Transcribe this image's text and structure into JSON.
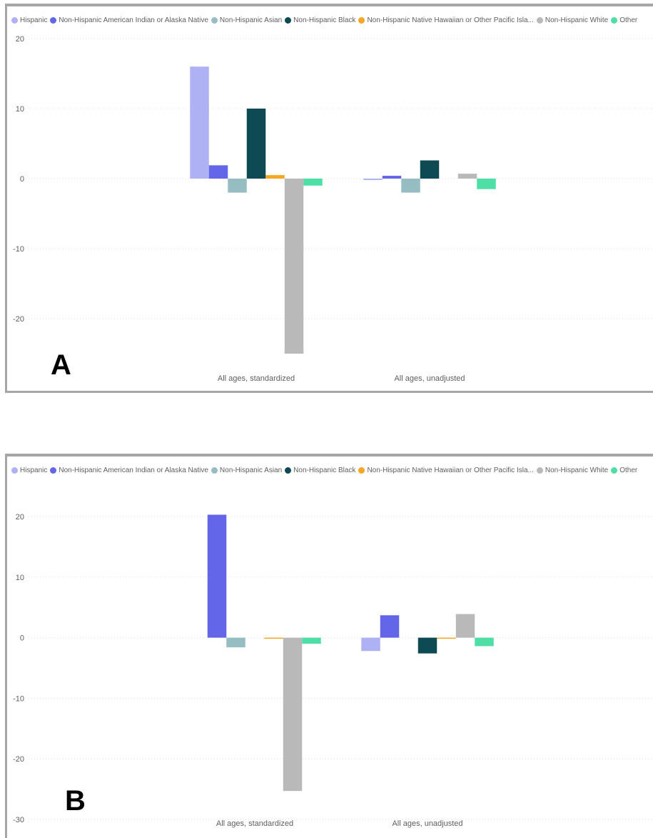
{
  "legend": [
    {
      "name": "Hispanic",
      "color": "#aeb1f4"
    },
    {
      "name": "Non-Hispanic American Indian or Alaska Native",
      "color": "#6366e8"
    },
    {
      "name": "Non-Hispanic Asian",
      "color": "#95bdc2"
    },
    {
      "name": "Non-Hispanic Black",
      "color": "#0d4a53"
    },
    {
      "name": "Non-Hispanic Native Hawaiian or Other Pacific Isla...",
      "color": "#f5a623"
    },
    {
      "name": "Non-Hispanic White",
      "color": "#b9b9b9"
    },
    {
      "name": "Other",
      "color": "#4ddfa5"
    }
  ],
  "panels": [
    {
      "letter": "A"
    },
    {
      "letter": "B"
    }
  ],
  "chart_data": [
    {
      "type": "bar",
      "categories": [
        "All ages, standardized",
        "All ages, unadjusted"
      ],
      "ylim": [
        -25,
        20
      ],
      "yticks": [
        20,
        10,
        0,
        -10,
        -20
      ],
      "grid": true,
      "legend_position": "top",
      "series": [
        {
          "name": "Hispanic",
          "values": [
            16,
            -0.2
          ]
        },
        {
          "name": "Non-Hispanic American Indian or Alaska Native",
          "values": [
            1.9,
            0.4
          ]
        },
        {
          "name": "Non-Hispanic Asian",
          "values": [
            -2,
            -2
          ]
        },
        {
          "name": "Non-Hispanic Black",
          "values": [
            10,
            2.6
          ]
        },
        {
          "name": "Non-Hispanic Native Hawaiian or Other Pacific Isla...",
          "values": [
            0.5,
            0
          ]
        },
        {
          "name": "Non-Hispanic White",
          "values": [
            -25,
            0.7
          ]
        },
        {
          "name": "Other",
          "values": [
            -1,
            -1.5
          ]
        }
      ]
    },
    {
      "type": "bar",
      "categories": [
        "All ages, standardized",
        "All ages, unadjusted"
      ],
      "ylim": [
        -30,
        20
      ],
      "yticks": [
        20,
        10,
        0,
        -10,
        -20,
        -30
      ],
      "grid": true,
      "legend_position": "top",
      "series": [
        {
          "name": "Hispanic",
          "values": [
            0,
            -2.2
          ]
        },
        {
          "name": "Non-Hispanic American Indian or Alaska Native",
          "values": [
            20.3,
            3.7
          ]
        },
        {
          "name": "Non-Hispanic Asian",
          "values": [
            -1.6,
            0
          ]
        },
        {
          "name": "Non-Hispanic Black",
          "values": [
            0,
            -2.6
          ]
        },
        {
          "name": "Non-Hispanic Native Hawaiian or Other Pacific Isla...",
          "values": [
            -0.1,
            -0.1
          ]
        },
        {
          "name": "Non-Hispanic White",
          "values": [
            -25.3,
            3.9
          ]
        },
        {
          "name": "Other",
          "values": [
            -1,
            -1.4
          ]
        }
      ]
    }
  ]
}
